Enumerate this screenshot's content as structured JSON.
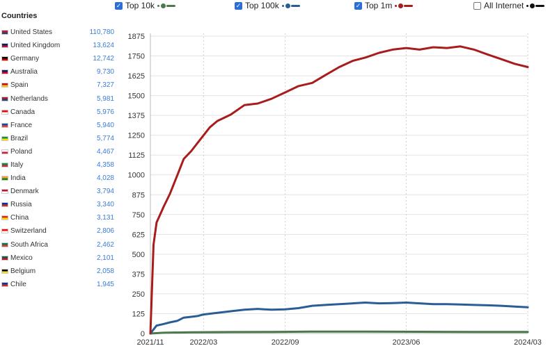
{
  "sidebar": {
    "title": "Countries",
    "countries": [
      {
        "name": "United States",
        "value": "110,780",
        "flag": [
          "#b22234",
          "#3c3b6e"
        ]
      },
      {
        "name": "United Kingdom",
        "value": "13,624",
        "flag": [
          "#012169",
          "#c8102e"
        ]
      },
      {
        "name": "Germany",
        "value": "12,742",
        "flag": [
          "#000000",
          "#dd0000"
        ]
      },
      {
        "name": "Australia",
        "value": "9,730",
        "flag": [
          "#012169",
          "#e4002b"
        ]
      },
      {
        "name": "Spain",
        "value": "7,327",
        "flag": [
          "#c60b1e",
          "#ffc400"
        ]
      },
      {
        "name": "Netherlands",
        "value": "5,981",
        "flag": [
          "#ae1c28",
          "#21468b"
        ]
      },
      {
        "name": "Canada",
        "value": "5,976",
        "flag": [
          "#ff0000",
          "#ffffff"
        ]
      },
      {
        "name": "France",
        "value": "5,940",
        "flag": [
          "#0055a4",
          "#ef4135"
        ]
      },
      {
        "name": "Brazil",
        "value": "5,774",
        "flag": [
          "#009c3b",
          "#ffdf00"
        ]
      },
      {
        "name": "Poland",
        "value": "4,467",
        "flag": [
          "#ffffff",
          "#dc143c"
        ]
      },
      {
        "name": "Italy",
        "value": "4,358",
        "flag": [
          "#009246",
          "#ce2b37"
        ]
      },
      {
        "name": "India",
        "value": "4,028",
        "flag": [
          "#ff9933",
          "#138808"
        ]
      },
      {
        "name": "Denmark",
        "value": "3,794",
        "flag": [
          "#c60c30",
          "#ffffff"
        ]
      },
      {
        "name": "Russia",
        "value": "3,340",
        "flag": [
          "#0039a6",
          "#d52b1e"
        ]
      },
      {
        "name": "China",
        "value": "3,131",
        "flag": [
          "#de2910",
          "#ffde00"
        ]
      },
      {
        "name": "Switzerland",
        "value": "2,806",
        "flag": [
          "#ff0000",
          "#ffffff"
        ]
      },
      {
        "name": "South Africa",
        "value": "2,462",
        "flag": [
          "#007a4d",
          "#de3831"
        ]
      },
      {
        "name": "Mexico",
        "value": "2,101",
        "flag": [
          "#006847",
          "#ce1126"
        ]
      },
      {
        "name": "Belgium",
        "value": "2,058",
        "flag": [
          "#000000",
          "#fdda24"
        ]
      },
      {
        "name": "Chile",
        "value": "1,945",
        "flag": [
          "#0039a6",
          "#d52b1e"
        ]
      }
    ]
  },
  "legend": [
    {
      "label": "Top 10k",
      "checked": true,
      "color": "#4a7a4c"
    },
    {
      "label": "Top 100k",
      "checked": true,
      "color": "#2a5c96"
    },
    {
      "label": "Top 1m",
      "checked": true,
      "color": "#a81c1c"
    },
    {
      "label": "All Internet",
      "checked": false,
      "color": "#111111"
    }
  ],
  "chart_data": {
    "type": "line",
    "ylim": [
      0,
      1875
    ],
    "yticks": [
      0,
      125,
      250,
      375,
      500,
      625,
      750,
      875,
      1000,
      1125,
      1250,
      1375,
      1500,
      1625,
      1750,
      1875
    ],
    "xlim": [
      "2021-11",
      "2024-03"
    ],
    "xticks": [
      {
        "label": "2021/11",
        "date": "2021-11"
      },
      {
        "label": "2022/03",
        "date": "2022-03"
      },
      {
        "label": "2022/09",
        "date": "2022-09"
      },
      {
        "label": "2023/06",
        "date": "2023-06"
      },
      {
        "label": "2024/03",
        "date": "2024-03"
      }
    ],
    "grid": true,
    "legend_position": "top",
    "series": [
      {
        "name": "Top 10k",
        "color": "#4a7a4c",
        "points": [
          [
            "2021-11",
            0
          ],
          [
            "2021-12",
            5
          ],
          [
            "2022-02",
            8
          ],
          [
            "2022-05",
            9
          ],
          [
            "2022-08",
            10
          ],
          [
            "2022-11",
            12
          ],
          [
            "2023-03",
            12
          ],
          [
            "2023-07",
            11
          ],
          [
            "2023-11",
            10
          ],
          [
            "2024-03",
            10
          ]
        ]
      },
      {
        "name": "Top 100k",
        "color": "#2a5c96",
        "points": [
          [
            "2021-11",
            0
          ],
          [
            "2021-11-15",
            50
          ],
          [
            "2021-12",
            60
          ],
          [
            "2021-12-15",
            70
          ],
          [
            "2022-01",
            80
          ],
          [
            "2022-01-15",
            100
          ],
          [
            "2022-02",
            105
          ],
          [
            "2022-02-15",
            110
          ],
          [
            "2022-03",
            120
          ],
          [
            "2022-04",
            130
          ],
          [
            "2022-05",
            140
          ],
          [
            "2022-06",
            150
          ],
          [
            "2022-07",
            155
          ],
          [
            "2022-08",
            150
          ],
          [
            "2022-09",
            152
          ],
          [
            "2022-10",
            160
          ],
          [
            "2022-11",
            175
          ],
          [
            "2022-12",
            180
          ],
          [
            "2023-01",
            185
          ],
          [
            "2023-02",
            190
          ],
          [
            "2023-03",
            195
          ],
          [
            "2023-04",
            190
          ],
          [
            "2023-05",
            192
          ],
          [
            "2023-06",
            195
          ],
          [
            "2023-07",
            190
          ],
          [
            "2023-08",
            185
          ],
          [
            "2023-09",
            185
          ],
          [
            "2023-10",
            183
          ],
          [
            "2023-11",
            180
          ],
          [
            "2023-12",
            178
          ],
          [
            "2024-01",
            175
          ],
          [
            "2024-02",
            170
          ],
          [
            "2024-03",
            165
          ]
        ]
      },
      {
        "name": "Top 1m",
        "color": "#a81c1c",
        "points": [
          [
            "2021-11",
            0
          ],
          [
            "2021-11-08",
            560
          ],
          [
            "2021-11-15",
            700
          ],
          [
            "2021-12",
            800
          ],
          [
            "2021-12-15",
            880
          ],
          [
            "2022-01",
            1000
          ],
          [
            "2022-01-15",
            1100
          ],
          [
            "2022-02",
            1150
          ],
          [
            "2022-02-15",
            1200
          ],
          [
            "2022-03",
            1250
          ],
          [
            "2022-03-15",
            1300
          ],
          [
            "2022-04",
            1340
          ],
          [
            "2022-05",
            1380
          ],
          [
            "2022-06",
            1440
          ],
          [
            "2022-07",
            1450
          ],
          [
            "2022-08",
            1480
          ],
          [
            "2022-09",
            1520
          ],
          [
            "2022-10",
            1560
          ],
          [
            "2022-11",
            1580
          ],
          [
            "2022-12",
            1630
          ],
          [
            "2023-01",
            1680
          ],
          [
            "2023-02",
            1720
          ],
          [
            "2023-03",
            1740
          ],
          [
            "2023-04",
            1770
          ],
          [
            "2023-05",
            1790
          ],
          [
            "2023-06",
            1800
          ],
          [
            "2023-07",
            1790
          ],
          [
            "2023-08",
            1805
          ],
          [
            "2023-09",
            1800
          ],
          [
            "2023-10",
            1810
          ],
          [
            "2023-11",
            1790
          ],
          [
            "2023-12",
            1760
          ],
          [
            "2024-01",
            1730
          ],
          [
            "2024-02",
            1700
          ],
          [
            "2024-03",
            1680
          ]
        ]
      }
    ]
  }
}
